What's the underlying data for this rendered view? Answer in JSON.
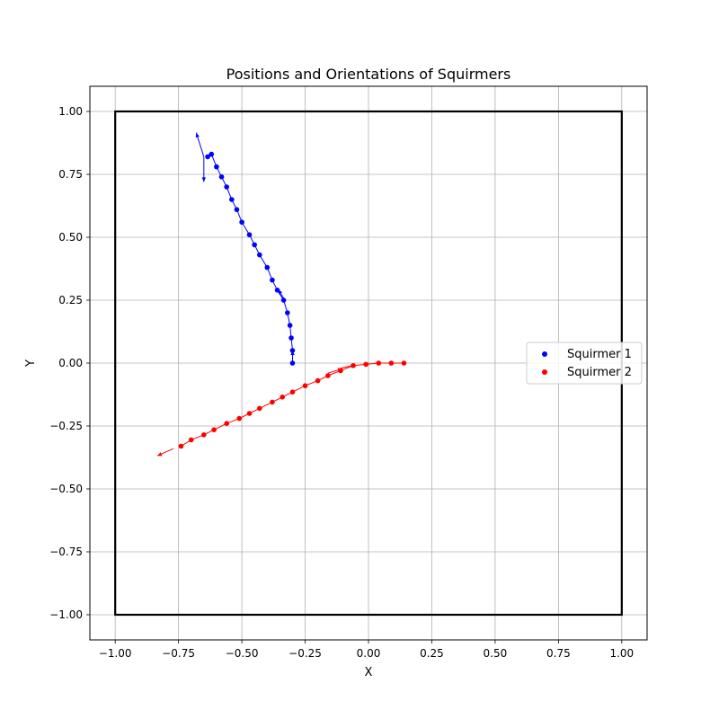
{
  "chart_data": {
    "type": "scatter",
    "title": "Positions and Orientations of Squirmers",
    "xlabel": "X",
    "ylabel": "Y",
    "xlim": [
      -1.1,
      1.1
    ],
    "ylim": [
      -1.1,
      1.1
    ],
    "xticks": [
      -1.0,
      -0.75,
      -0.5,
      -0.25,
      0.0,
      0.25,
      0.5,
      0.75,
      1.0
    ],
    "yticks": [
      -1.0,
      -0.75,
      -0.5,
      -0.25,
      0.0,
      0.25,
      0.5,
      0.75,
      1.0
    ],
    "xtick_labels": [
      "−1.00",
      "−0.75",
      "−0.50",
      "−0.25",
      "0.00",
      "0.25",
      "0.50",
      "0.75",
      "1.00"
    ],
    "ytick_labels": [
      "−1.00",
      "−0.75",
      "−0.50",
      "−0.25",
      "0.00",
      "0.25",
      "0.50",
      "0.75",
      "1.00"
    ],
    "grid": true,
    "boundary_box": {
      "xmin": -1.0,
      "xmax": 1.0,
      "ymin": -1.0,
      "ymax": 1.0,
      "color": "#000000"
    },
    "legend_position": "center-right",
    "series": [
      {
        "name": "Squirmer 1",
        "color": "#0000ff",
        "points": [
          [
            -0.3,
            0.0
          ],
          [
            -0.3,
            0.05
          ],
          [
            -0.305,
            0.1
          ],
          [
            -0.31,
            0.15
          ],
          [
            -0.32,
            0.2
          ],
          [
            -0.335,
            0.25
          ],
          [
            -0.36,
            0.29
          ],
          [
            -0.38,
            0.33
          ],
          [
            -0.4,
            0.38
          ],
          [
            -0.43,
            0.43
          ],
          [
            -0.45,
            0.47
          ],
          [
            -0.47,
            0.51
          ],
          [
            -0.5,
            0.56
          ],
          [
            -0.52,
            0.61
          ],
          [
            -0.54,
            0.65
          ],
          [
            -0.56,
            0.7
          ],
          [
            -0.58,
            0.74
          ],
          [
            -0.6,
            0.78
          ],
          [
            -0.62,
            0.83
          ],
          [
            -0.635,
            0.82
          ]
        ],
        "orientations": [
          [
            -0.3,
            0.0,
            0.0,
            1.0,
            0.05
          ],
          [
            -0.33,
            0.25,
            -0.5,
            0.8,
            0.05
          ],
          [
            -0.65,
            0.82,
            -0.3,
            0.95,
            0.1
          ],
          [
            -0.65,
            0.82,
            0.0,
            -1.0,
            0.1
          ]
        ]
      },
      {
        "name": "Squirmer 2",
        "color": "#ff0000",
        "points": [
          [
            0.14,
            0.0
          ],
          [
            0.09,
            0.0
          ],
          [
            0.04,
            0.0
          ],
          [
            -0.01,
            -0.005
          ],
          [
            -0.06,
            -0.01
          ],
          [
            -0.11,
            -0.03
          ],
          [
            -0.16,
            -0.05
          ],
          [
            -0.2,
            -0.07
          ],
          [
            -0.25,
            -0.09
          ],
          [
            -0.3,
            -0.115
          ],
          [
            -0.34,
            -0.135
          ],
          [
            -0.38,
            -0.155
          ],
          [
            -0.43,
            -0.18
          ],
          [
            -0.47,
            -0.2
          ],
          [
            -0.51,
            -0.22
          ],
          [
            -0.56,
            -0.24
          ],
          [
            -0.61,
            -0.265
          ],
          [
            -0.65,
            -0.285
          ],
          [
            -0.7,
            -0.305
          ],
          [
            -0.74,
            -0.33
          ]
        ],
        "orientations": [
          [
            -0.16,
            -0.04,
            0.95,
            0.3,
            0.06
          ],
          [
            -0.11,
            -0.02,
            0.95,
            0.2,
            0.06
          ],
          [
            -0.77,
            -0.34,
            -0.9,
            -0.4,
            0.07
          ]
        ]
      }
    ]
  }
}
